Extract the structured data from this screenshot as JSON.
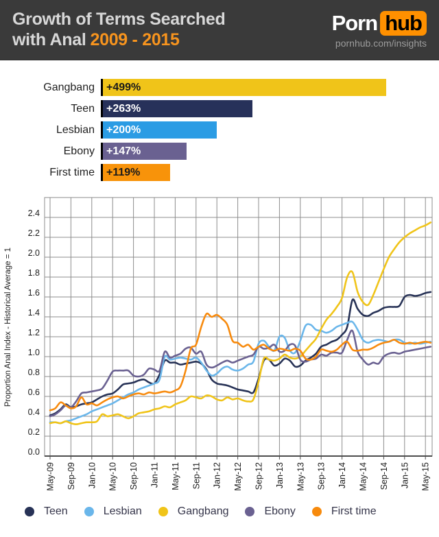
{
  "header": {
    "title_line1": "Growth of Terms Searched",
    "title_line2": "with Anal",
    "title_years": "2009 - 2015",
    "logo_part1": "Porn",
    "logo_part2": "hub",
    "logo_subtitle": "pornhub.com/insights",
    "colors": {
      "background": "#3a3a3a",
      "accent_orange": "#f7941e",
      "logo_orange": "#ff9000"
    }
  },
  "chart_data": [
    {
      "type": "bar",
      "orientation": "horizontal",
      "categories": [
        "Gangbang",
        "Teen",
        "Lesbian",
        "Ebony",
        "First time"
      ],
      "values": [
        499,
        263,
        200,
        147,
        119
      ],
      "value_labels": [
        "+499%",
        "+263%",
        "+200%",
        "+147%",
        "+119%"
      ],
      "bar_colors": [
        "#f0c419",
        "#27315a",
        "#2b9ce4",
        "#6a6191",
        "#f8930a"
      ],
      "value_label_colors": [
        "#1a1a1a",
        "#ffffff",
        "#ffffff",
        "#ffffff",
        "#1a1a1a"
      ],
      "xlim": [
        0,
        510
      ],
      "grid": false
    },
    {
      "type": "line",
      "title": "",
      "ylabel": "Proportion Anal Index - Historical Average = 1",
      "xlabel": "",
      "ylim": [
        0,
        2.6
      ],
      "ytick_step": 0.2,
      "ytick_labels": [
        "0.0",
        "0.2",
        "0.4",
        "0.6",
        "0.8",
        "1.0",
        "1.2",
        "1.4",
        "1.6",
        "1.8",
        "2.0",
        "2.2",
        "2.4"
      ],
      "x_unit": "month",
      "x_range": [
        "May-09",
        "Jun-15"
      ],
      "xtick_labels": [
        "May-09",
        "Sep-09",
        "Jan-10",
        "May-10",
        "Sep-10",
        "Jan-11",
        "May-11",
        "Sep-11",
        "Jan-12",
        "May-12",
        "Sep-12",
        "Jan-13",
        "May-13",
        "Sep-13",
        "Jan-14",
        "May-14",
        "Sep-14",
        "Jan-15",
        "May-15"
      ],
      "xtick_month_index": [
        0,
        4,
        8,
        12,
        16,
        20,
        24,
        28,
        32,
        36,
        40,
        44,
        48,
        52,
        56,
        60,
        64,
        68,
        72
      ],
      "grid": true,
      "grid_color": "#8c8c8c",
      "legend_position": "bottom",
      "series": [
        {
          "name": "Teen",
          "color": "#273256",
          "values": [
            0.41,
            0.43,
            0.47,
            0.52,
            0.49,
            0.5,
            0.52,
            0.53,
            0.54,
            0.57,
            0.6,
            0.62,
            0.63,
            0.67,
            0.72,
            0.73,
            0.74,
            0.76,
            0.77,
            0.74,
            0.73,
            0.82,
            0.96,
            0.94,
            0.94,
            0.92,
            0.93,
            0.94,
            0.95,
            0.93,
            0.87,
            0.77,
            0.73,
            0.72,
            0.71,
            0.69,
            0.67,
            0.66,
            0.65,
            0.64,
            0.78,
            0.96,
            0.97,
            0.91,
            0.93,
            0.98,
            0.96,
            0.9,
            0.91,
            0.96,
            0.99,
            1.03,
            1.1,
            1.12,
            1.15,
            1.17,
            1.22,
            1.3,
            1.57,
            1.48,
            1.42,
            1.41,
            1.44,
            1.46,
            1.49,
            1.5,
            1.5,
            1.51,
            1.6,
            1.62,
            1.61,
            1.62,
            1.64,
            1.65
          ]
        },
        {
          "name": "Lesbian",
          "color": "#6ab6ea",
          "values": [
            0.34,
            0.34,
            0.33,
            0.35,
            0.36,
            0.38,
            0.4,
            0.42,
            0.45,
            0.47,
            0.49,
            0.51,
            0.53,
            0.56,
            0.59,
            0.62,
            0.64,
            0.67,
            0.69,
            0.71,
            0.73,
            0.77,
            1.0,
            0.97,
            0.98,
            0.99,
            0.98,
            0.97,
            0.99,
            0.94,
            0.86,
            0.81,
            0.83,
            0.88,
            0.9,
            0.87,
            0.86,
            0.88,
            0.92,
            0.95,
            1.13,
            1.16,
            1.1,
            1.06,
            1.2,
            1.19,
            1.06,
            1.04,
            1.16,
            1.31,
            1.32,
            1.27,
            1.26,
            1.24,
            1.26,
            1.3,
            1.32,
            1.34,
            1.35,
            1.27,
            1.17,
            1.14,
            1.16,
            1.17,
            1.16,
            1.15,
            1.17,
            1.17,
            1.14,
            1.13,
            1.14,
            1.13,
            1.14,
            1.15
          ]
        },
        {
          "name": "Gangbang",
          "color": "#f0c419",
          "values": [
            0.33,
            0.34,
            0.33,
            0.35,
            0.33,
            0.32,
            0.33,
            0.34,
            0.34,
            0.35,
            0.42,
            0.4,
            0.41,
            0.42,
            0.4,
            0.38,
            0.4,
            0.43,
            0.44,
            0.45,
            0.47,
            0.48,
            0.5,
            0.49,
            0.52,
            0.54,
            0.56,
            0.6,
            0.59,
            0.58,
            0.61,
            0.6,
            0.57,
            0.56,
            0.59,
            0.57,
            0.58,
            0.56,
            0.55,
            0.57,
            0.75,
            0.98,
            0.97,
            0.96,
            0.98,
            1.02,
            0.99,
            0.98,
            1.0,
            1.06,
            1.12,
            1.18,
            1.28,
            1.37,
            1.43,
            1.5,
            1.59,
            1.8,
            1.85,
            1.65,
            1.55,
            1.52,
            1.62,
            1.75,
            1.88,
            2.0,
            2.08,
            2.15,
            2.2,
            2.24,
            2.27,
            2.3,
            2.32,
            2.35
          ]
        },
        {
          "name": "Ebony",
          "color": "#6a6191",
          "values": [
            0.4,
            0.42,
            0.46,
            0.51,
            0.49,
            0.55,
            0.63,
            0.64,
            0.65,
            0.66,
            0.68,
            0.76,
            0.85,
            0.86,
            0.86,
            0.86,
            0.81,
            0.8,
            0.82,
            0.88,
            0.87,
            0.86,
            1.05,
            0.99,
            1.01,
            1.03,
            1.08,
            1.09,
            1.03,
            1.05,
            0.92,
            0.89,
            0.91,
            0.94,
            0.96,
            0.94,
            0.96,
            0.98,
            1.0,
            1.02,
            1.1,
            1.08,
            1.09,
            1.12,
            1.05,
            1.06,
            1.12,
            1.11,
            0.97,
            0.95,
            0.97,
            0.98,
            1.02,
            1.01,
            1.04,
            1.04,
            1.04,
            1.17,
            1.26,
            1.05,
            0.97,
            0.92,
            0.94,
            0.93,
            1.0,
            1.03,
            1.04,
            1.03,
            1.05,
            1.06,
            1.07,
            1.08,
            1.09,
            1.1
          ]
        },
        {
          "name": "First time",
          "color": "#f78a0d",
          "values": [
            0.46,
            0.48,
            0.54,
            0.51,
            0.48,
            0.5,
            0.59,
            0.52,
            0.53,
            0.51,
            0.54,
            0.57,
            0.59,
            0.6,
            0.58,
            0.6,
            0.62,
            0.63,
            0.62,
            0.64,
            0.63,
            0.64,
            0.65,
            0.64,
            0.66,
            0.7,
            0.86,
            1.08,
            1.12,
            1.3,
            1.43,
            1.4,
            1.42,
            1.38,
            1.32,
            1.16,
            1.14,
            1.1,
            1.12,
            1.07,
            1.1,
            1.12,
            1.08,
            1.06,
            1.08,
            1.07,
            1.06,
            1.08,
            1.06,
            0.98,
            0.97,
            1.0,
            1.07,
            1.06,
            1.05,
            1.07,
            1.12,
            1.15,
            1.07,
            1.06,
            1.07,
            1.07,
            1.09,
            1.12,
            1.14,
            1.15,
            1.17,
            1.14,
            1.13,
            1.14,
            1.13,
            1.14,
            1.15,
            1.14
          ]
        }
      ]
    }
  ],
  "legend": {
    "items": [
      {
        "label": "Teen",
        "color": "#273256"
      },
      {
        "label": "Lesbian",
        "color": "#6ab6ea"
      },
      {
        "label": "Gangbang",
        "color": "#f0c419"
      },
      {
        "label": "Ebony",
        "color": "#6a6191"
      },
      {
        "label": "First time",
        "color": "#f78a0d"
      }
    ]
  }
}
